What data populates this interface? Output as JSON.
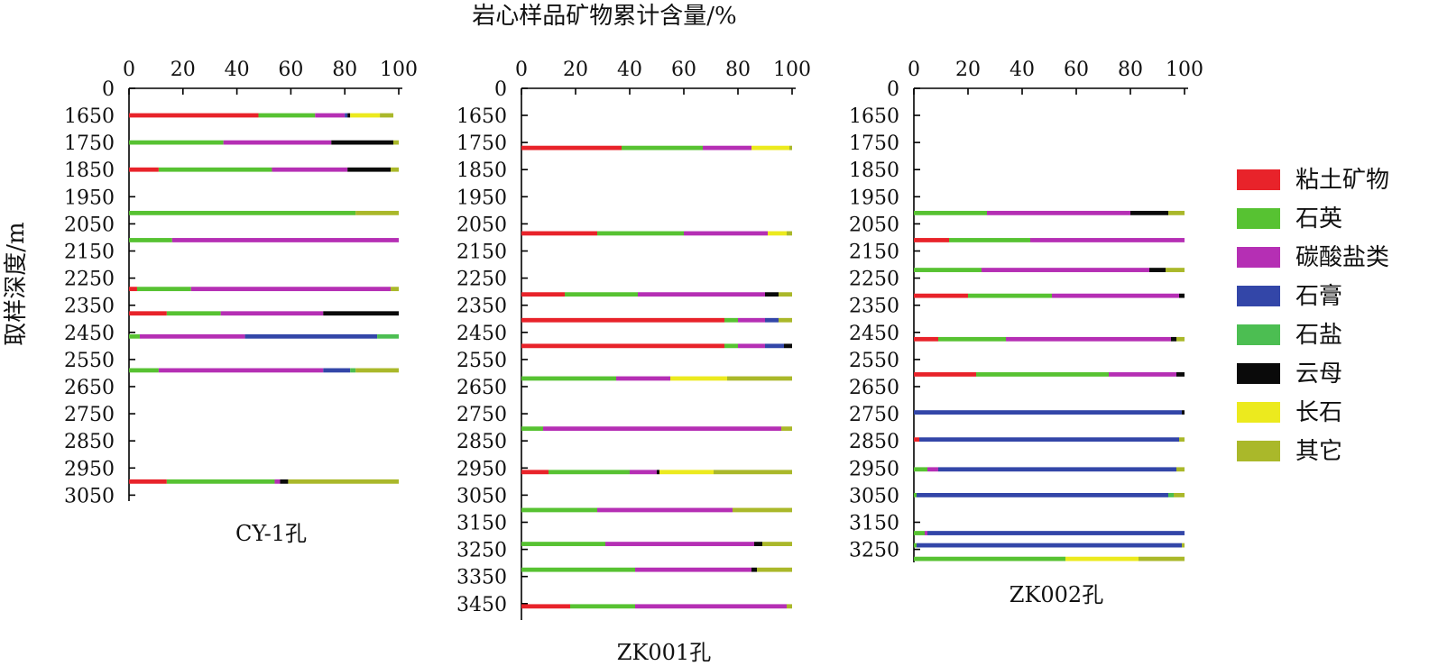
{
  "figure_title": "岩心样品矿物累计含量/%",
  "y_axis_label": "取样深度/m",
  "legend": [
    {
      "label": "粘土矿物",
      "color": "#e8232a"
    },
    {
      "label": "石英",
      "color": "#57c232"
    },
    {
      "label": "碳酸盐类",
      "color": "#b52fb4"
    },
    {
      "label": "石膏",
      "color": "#3346a8"
    },
    {
      "label": "石盐",
      "color": "#4cbe52"
    },
    {
      "label": "云母",
      "color": "#0a0a0a"
    },
    {
      "label": "长石",
      "color": "#ecea1e"
    },
    {
      "label": "其它",
      "color": "#aab82a"
    }
  ],
  "chart_data": [
    {
      "type": "bar",
      "orientation": "horizontal-stacked",
      "caption": "CY-1孔",
      "x_ticks": [
        "0",
        "20",
        "40",
        "60",
        "80",
        "100"
      ],
      "xlim": [
        0,
        100
      ],
      "depth_ticks": [
        "0",
        "1650",
        "1750",
        "1850",
        "1950",
        "2050",
        "2150",
        "2250",
        "2350",
        "2450",
        "2550",
        "2650",
        "2750",
        "2850",
        "2950",
        "3050"
      ],
      "categories": [
        "粘土矿物",
        "石英",
        "碳酸盐类",
        "石膏",
        "石盐",
        "云母",
        "长石",
        "其它"
      ],
      "samples": [
        {
          "depth": 1650,
          "values": [
            48,
            21,
            11,
            1,
            0,
            1,
            11,
            5
          ]
        },
        {
          "depth": 1750,
          "values": [
            0,
            35,
            40,
            0,
            0,
            23,
            0,
            2
          ]
        },
        {
          "depth": 1850,
          "values": [
            11,
            42,
            28,
            0,
            0,
            16,
            0,
            3
          ]
        },
        {
          "depth": 2010,
          "values": [
            0,
            84,
            0,
            0,
            0,
            0,
            0,
            16
          ]
        },
        {
          "depth": 2110,
          "values": [
            0,
            16,
            84,
            0,
            0,
            0,
            0,
            0
          ]
        },
        {
          "depth": 2290,
          "values": [
            3,
            20,
            74,
            0,
            0,
            0,
            0,
            3
          ]
        },
        {
          "depth": 2380,
          "values": [
            14,
            20,
            38,
            0,
            0,
            28,
            0,
            0
          ]
        },
        {
          "depth": 2465,
          "values": [
            0,
            4,
            39,
            49,
            8,
            0,
            0,
            0
          ]
        },
        {
          "depth": 2590,
          "values": [
            0,
            11,
            61,
            10,
            2,
            0,
            0,
            16
          ]
        },
        {
          "depth": 3000,
          "values": [
            14,
            40,
            2,
            0,
            0,
            3,
            0,
            41
          ]
        }
      ]
    },
    {
      "type": "bar",
      "orientation": "horizontal-stacked",
      "caption": "ZK001孔",
      "x_ticks": [
        "0",
        "20",
        "40",
        "60",
        "80",
        "100"
      ],
      "xlim": [
        0,
        100
      ],
      "depth_ticks": [
        "0",
        "1650",
        "1750",
        "1850",
        "1950",
        "2050",
        "2150",
        "2250",
        "2350",
        "2450",
        "2550",
        "2650",
        "2750",
        "2850",
        "2950",
        "3050",
        "3150",
        "3250",
        "3350",
        "3450"
      ],
      "categories": [
        "粘土矿物",
        "石英",
        "碳酸盐类",
        "石膏",
        "石盐",
        "云母",
        "长石",
        "其它"
      ],
      "samples": [
        {
          "depth": 1770,
          "values": [
            37,
            30,
            18,
            0,
            0,
            0,
            14,
            1
          ]
        },
        {
          "depth": 2085,
          "values": [
            28,
            32,
            31,
            0,
            0,
            0,
            7,
            2
          ]
        },
        {
          "depth": 2310,
          "values": [
            16,
            27,
            47,
            0,
            0,
            5,
            0,
            5
          ]
        },
        {
          "depth": 2405,
          "values": [
            75,
            5,
            10,
            5,
            0,
            0,
            0,
            5
          ]
        },
        {
          "depth": 2500,
          "values": [
            75,
            5,
            10,
            7,
            0,
            3,
            0,
            0
          ]
        },
        {
          "depth": 2620,
          "values": [
            0,
            35,
            20,
            0,
            0,
            0,
            21,
            24
          ]
        },
        {
          "depth": 2805,
          "values": [
            0,
            8,
            88,
            0,
            0,
            0,
            0,
            4
          ]
        },
        {
          "depth": 2965,
          "values": [
            10,
            30,
            10,
            0,
            0,
            1,
            20,
            29
          ]
        },
        {
          "depth": 3105,
          "values": [
            0,
            28,
            50,
            0,
            0,
            0,
            0,
            22
          ]
        },
        {
          "depth": 3230,
          "values": [
            0,
            31,
            55,
            0,
            0,
            3,
            0,
            11
          ]
        },
        {
          "depth": 3325,
          "values": [
            0,
            42,
            43,
            0,
            0,
            2,
            0,
            13
          ]
        },
        {
          "depth": 3460,
          "values": [
            18,
            24,
            56,
            0,
            0,
            0,
            0,
            2
          ]
        }
      ]
    },
    {
      "type": "bar",
      "orientation": "horizontal-stacked",
      "caption": "ZK002孔",
      "x_ticks": [
        "0",
        "20",
        "40",
        "60",
        "80",
        "100"
      ],
      "xlim": [
        0,
        100
      ],
      "depth_ticks": [
        "0",
        "1650",
        "1750",
        "1850",
        "1950",
        "2050",
        "2150",
        "2250",
        "2350",
        "2450",
        "2550",
        "2650",
        "2750",
        "2850",
        "2950",
        "3050",
        "3150",
        "3250"
      ],
      "categories": [
        "粘土矿物",
        "石英",
        "碳酸盐类",
        "石膏",
        "石盐",
        "云母",
        "长石",
        "其它"
      ],
      "samples": [
        {
          "depth": 2010,
          "values": [
            0,
            27,
            53,
            0,
            0,
            14,
            0,
            6
          ]
        },
        {
          "depth": 2110,
          "values": [
            13,
            30,
            57,
            0,
            0,
            0,
            0,
            0
          ]
        },
        {
          "depth": 2220,
          "values": [
            0,
            25,
            62,
            0,
            0,
            6,
            0,
            7
          ]
        },
        {
          "depth": 2315,
          "values": [
            20,
            31,
            47,
            0,
            0,
            2,
            0,
            0
          ]
        },
        {
          "depth": 2475,
          "values": [
            9,
            25,
            61,
            0,
            0,
            2,
            0,
            3
          ]
        },
        {
          "depth": 2605,
          "values": [
            23,
            49,
            25,
            0,
            0,
            3,
            0,
            0
          ]
        },
        {
          "depth": 2745,
          "values": [
            0,
            0,
            0,
            99,
            0,
            1,
            0,
            0
          ]
        },
        {
          "depth": 2845,
          "values": [
            2,
            0,
            0,
            96,
            0,
            0,
            0,
            2
          ]
        },
        {
          "depth": 2955,
          "values": [
            0,
            5,
            4,
            88,
            0,
            0,
            0,
            3
          ]
        },
        {
          "depth": 3050,
          "values": [
            0,
            1,
            0,
            93,
            2,
            0,
            0,
            4
          ]
        },
        {
          "depth": 3190,
          "values": [
            0,
            4,
            1,
            95,
            0,
            0,
            0,
            0
          ]
        },
        {
          "depth": 3235,
          "values": [
            0,
            1,
            0,
            98,
            0,
            0,
            0,
            1
          ]
        },
        {
          "depth": 3285,
          "values": [
            0,
            56,
            0,
            0,
            0,
            0,
            27,
            17
          ]
        }
      ]
    }
  ]
}
